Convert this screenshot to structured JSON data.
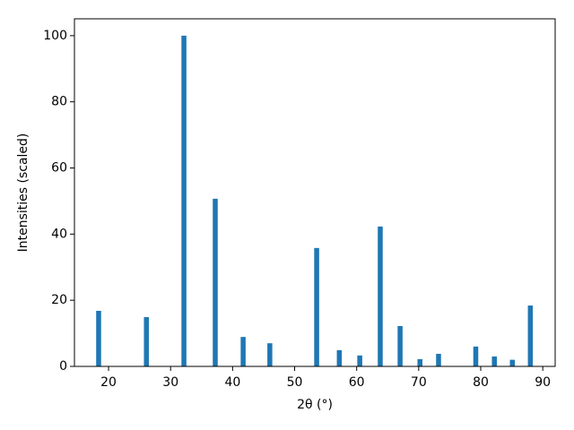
{
  "chart_data": {
    "type": "bar",
    "xlabel": "2θ (°)",
    "ylabel": "Intensities (scaled)",
    "x": [
      18.4,
      26.1,
      32.15,
      37.2,
      41.7,
      46.0,
      53.55,
      57.2,
      60.5,
      63.8,
      67.0,
      70.2,
      73.2,
      79.2,
      82.2,
      85.1,
      88.0
    ],
    "values": [
      16.8,
      14.9,
      100,
      50.7,
      8.9,
      7.0,
      35.8,
      4.9,
      3.3,
      42.3,
      12.2,
      2.2,
      3.8,
      6.0,
      3.0,
      2.0,
      18.4
    ],
    "bar_width": 0.8,
    "color": "#1f77b4",
    "xlim": [
      14.5,
      92.0
    ],
    "xticks": [
      20,
      30,
      40,
      50,
      60,
      70,
      80,
      90
    ],
    "ylim": [
      0,
      105.1
    ],
    "yticks": [
      0,
      20,
      40,
      60,
      80,
      100
    ],
    "grid": false
  }
}
